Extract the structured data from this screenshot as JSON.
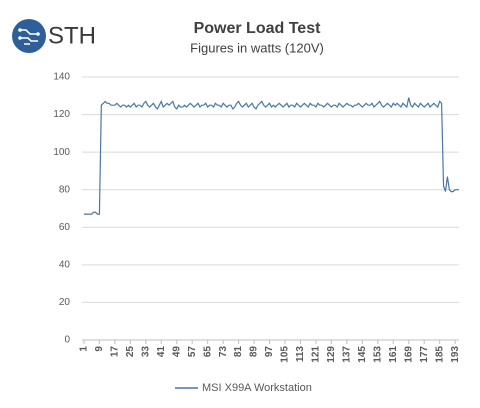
{
  "logo": "STH",
  "chart_data": {
    "type": "line",
    "title": "Power Load Test",
    "subtitle": "Figures in watts (120V)",
    "x": [
      1,
      2,
      3,
      4,
      5,
      6,
      7,
      8,
      9,
      10,
      11,
      12,
      13,
      14,
      15,
      16,
      17,
      18,
      19,
      20,
      21,
      22,
      23,
      24,
      25,
      26,
      27,
      28,
      29,
      30,
      31,
      32,
      33,
      34,
      35,
      36,
      37,
      38,
      39,
      40,
      41,
      42,
      43,
      44,
      45,
      46,
      47,
      48,
      49,
      50,
      51,
      52,
      53,
      54,
      55,
      56,
      57,
      58,
      59,
      60,
      61,
      62,
      63,
      64,
      65,
      66,
      67,
      68,
      69,
      70,
      71,
      72,
      73,
      74,
      75,
      76,
      77,
      78,
      79,
      80,
      81,
      82,
      83,
      84,
      85,
      86,
      87,
      88,
      89,
      90,
      91,
      92,
      93,
      94,
      95,
      96,
      97,
      98,
      99,
      100,
      101,
      102,
      103,
      104,
      105,
      106,
      107,
      108,
      109,
      110,
      111,
      112,
      113,
      114,
      115,
      116,
      117,
      118,
      119,
      120,
      121,
      122,
      123,
      124,
      125,
      126,
      127,
      128,
      129,
      130,
      131,
      132,
      133,
      134,
      135,
      136,
      137,
      138,
      139,
      140,
      141,
      142,
      143,
      144,
      145,
      146,
      147,
      148,
      149,
      150,
      151,
      152,
      153,
      154,
      155,
      156,
      157,
      158,
      159,
      160,
      161,
      162,
      163,
      164,
      165,
      166,
      167,
      168,
      169,
      170,
      171,
      172,
      173,
      174,
      175,
      176,
      177,
      178,
      179,
      180,
      181,
      182,
      183,
      184,
      185,
      186,
      187,
      188,
      189,
      190,
      191,
      192,
      193,
      194,
      195
    ],
    "series": [
      {
        "name": "MSI X99A Workstation",
        "color": "#4a77a8",
        "values": [
          67,
          67,
          67,
          67,
          67,
          68,
          68,
          67,
          67,
          125,
          126,
          127,
          126,
          126,
          125,
          125,
          125,
          126,
          125,
          124,
          125,
          125,
          124,
          125,
          124,
          125,
          126,
          124,
          125,
          125,
          124,
          126,
          127,
          125,
          124,
          125,
          126,
          124,
          123,
          125,
          127,
          124,
          125,
          126,
          125,
          126,
          127,
          124,
          123,
          125,
          124,
          124,
          125,
          124,
          125,
          126,
          125,
          124,
          125,
          126,
          124,
          125,
          125,
          126,
          124,
          125,
          125,
          124,
          126,
          125,
          125,
          124,
          126,
          125,
          124,
          125,
          125,
          123,
          124,
          126,
          127,
          125,
          124,
          125,
          126,
          124,
          125,
          126,
          124,
          123,
          125,
          126,
          127,
          125,
          124,
          125,
          126,
          124,
          125,
          124,
          125,
          126,
          125,
          124,
          125,
          126,
          124,
          125,
          125,
          124,
          126,
          125,
          124,
          125,
          126,
          125,
          124,
          126,
          125,
          125,
          124,
          126,
          125,
          125,
          124,
          125,
          126,
          125,
          124,
          125,
          125,
          124,
          126,
          125,
          124,
          125,
          126,
          125,
          125,
          124,
          125,
          125,
          126,
          125,
          124,
          125,
          126,
          125,
          125,
          126,
          124,
          125,
          126,
          127,
          125,
          124,
          125,
          126,
          125,
          124,
          126,
          125,
          126,
          125,
          124,
          126,
          125,
          124,
          129,
          125,
          124,
          126,
          125,
          124,
          126,
          125,
          124,
          125,
          126,
          124,
          125,
          126,
          125,
          124,
          127,
          126,
          82,
          79,
          87,
          80,
          79,
          79,
          80,
          80,
          80
        ]
      }
    ],
    "xlim": [
      0,
      195
    ],
    "xticks": [
      1,
      9,
      17,
      25,
      33,
      41,
      49,
      57,
      65,
      73,
      81,
      89,
      97,
      105,
      113,
      121,
      129,
      137,
      145,
      153,
      161,
      169,
      177,
      185,
      193
    ],
    "ylim": [
      0,
      140
    ],
    "yticks": [
      0,
      20,
      40,
      60,
      80,
      100,
      120,
      140
    ],
    "grid": true,
    "legend": "bottom"
  }
}
